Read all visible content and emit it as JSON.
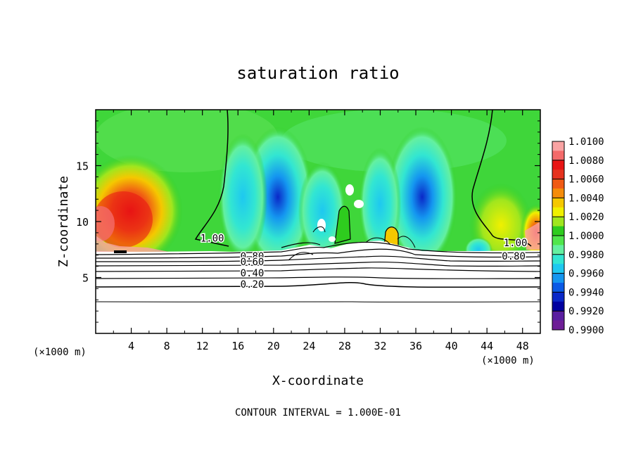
{
  "chart_data": {
    "type": "heatmap",
    "title": "saturation ratio",
    "xlabel": "X-coordinate",
    "ylabel": "Z-coordinate",
    "x_unit_note": "(×1000 m)",
    "x_unit_note_right": "(×1000 m)",
    "footer": "CONTOUR INTERVAL = 1.000E-01",
    "xlim": [
      0,
      50
    ],
    "ylim": [
      0,
      20
    ],
    "x_ticks": [
      4,
      8,
      12,
      16,
      20,
      24,
      28,
      32,
      36,
      40,
      44,
      48
    ],
    "y_ticks": [
      5,
      10,
      15
    ],
    "colorbar": {
      "labels": [
        "1.0100",
        "1.0080",
        "1.0060",
        "1.0040",
        "1.0020",
        "1.0000",
        "0.9980",
        "0.9960",
        "0.9940",
        "0.9920",
        "0.9900"
      ],
      "range": [
        0.99,
        1.01
      ],
      "colors": [
        "#f9a3a3",
        "#f46a6a",
        "#e81414",
        "#e6321e",
        "#f05a14",
        "#f58c0a",
        "#f5c800",
        "#f0f000",
        "#a0e61e",
        "#2ecc1e",
        "#50e64b",
        "#64f0a0",
        "#32e6d2",
        "#1ec8f0",
        "#1496f0",
        "#0a5ae6",
        "#0a28c8",
        "#0000a0",
        "#5a1ea0",
        "#6e1e96"
      ]
    },
    "contour_labels": [
      {
        "text": "1.00",
        "x": 13.1,
        "z": 8.2
      },
      {
        "text": "1.00",
        "x": 47.2,
        "z": 7.8
      },
      {
        "text": "0.80",
        "x": 17.6,
        "z": 6.6
      },
      {
        "text": "0.60",
        "x": 17.6,
        "z": 6.1
      },
      {
        "text": "0.40",
        "x": 17.6,
        "z": 5.1
      },
      {
        "text": "0.20",
        "x": 17.6,
        "z": 4.1
      },
      {
        "text": "0.80",
        "x": 47.0,
        "z": 6.6
      }
    ]
  }
}
